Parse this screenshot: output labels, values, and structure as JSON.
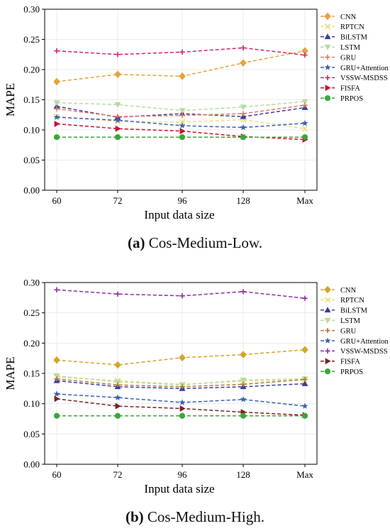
{
  "chart_data": [
    {
      "type": "line",
      "caption_letter": "(a)",
      "caption_text": " Cos-Medium-Low.",
      "xlabel": "Input data size",
      "ylabel": "MAPE",
      "categories": [
        "60",
        "72",
        "96",
        "128",
        "Max"
      ],
      "ylim": [
        0,
        0.3
      ],
      "yticks": [
        "0.00",
        "0.05",
        "0.10",
        "0.15",
        "0.20",
        "0.25",
        "0.30"
      ],
      "grid": true,
      "legend_position": "right",
      "series": [
        {
          "name": "CNN",
          "color": "#e8a23c",
          "marker": "diamond",
          "values": [
            0.18,
            0.192,
            0.189,
            0.211,
            0.231
          ]
        },
        {
          "name": "RPTCN",
          "color": "#eedd82",
          "marker": "x",
          "values": [
            0.122,
            0.114,
            0.113,
            0.117,
            0.102
          ]
        },
        {
          "name": "BiLSTM",
          "color": "#3c3c96",
          "marker": "triangle",
          "values": [
            0.139,
            0.121,
            0.127,
            0.122,
            0.137
          ]
        },
        {
          "name": "LSTM",
          "color": "#b6dca0",
          "marker": "triangle-down",
          "values": [
            0.145,
            0.142,
            0.132,
            0.138,
            0.147
          ]
        },
        {
          "name": "GRU",
          "color": "#e07a5f",
          "marker": "plus",
          "values": [
            0.135,
            0.122,
            0.124,
            0.127,
            0.141
          ]
        },
        {
          "name": "GRU+Attention",
          "color": "#3a5fb0",
          "marker": "star",
          "values": [
            0.121,
            0.116,
            0.107,
            0.104,
            0.111
          ]
        },
        {
          "name": "VSSW-MSDSS",
          "color": "#d0236e",
          "marker": "plus",
          "values": [
            0.231,
            0.225,
            0.229,
            0.236,
            0.224
          ]
        },
        {
          "name": "FISFA",
          "color": "#c8102e",
          "marker": "triangle-right",
          "values": [
            0.11,
            0.102,
            0.098,
            0.089,
            0.084
          ]
        },
        {
          "name": "PRPOS",
          "color": "#3aa63a",
          "marker": "circle",
          "values": [
            0.088,
            0.088,
            0.088,
            0.088,
            0.088
          ]
        }
      ]
    },
    {
      "type": "line",
      "caption_letter": "(b)",
      "caption_text": " Cos-Medium-High.",
      "xlabel": "Input data size",
      "ylabel": "MAPE",
      "categories": [
        "60",
        "72",
        "96",
        "128",
        "Max"
      ],
      "ylim": [
        0,
        0.3
      ],
      "yticks": [
        "0.00",
        "0.05",
        "0.10",
        "0.15",
        "0.20",
        "0.25",
        "0.30"
      ],
      "grid": true,
      "legend_position": "right",
      "series": [
        {
          "name": "CNN",
          "color": "#d4a52c",
          "marker": "diamond",
          "values": [
            0.172,
            0.164,
            0.176,
            0.181,
            0.189
          ]
        },
        {
          "name": "RPTCN",
          "color": "#eedd82",
          "marker": "x",
          "values": [
            0.144,
            0.138,
            0.132,
            0.137,
            0.139
          ]
        },
        {
          "name": "BiLSTM",
          "color": "#3c3c96",
          "marker": "triangle",
          "values": [
            0.138,
            0.128,
            0.125,
            0.128,
            0.133
          ]
        },
        {
          "name": "LSTM",
          "color": "#b6dca0",
          "marker": "triangle-down",
          "values": [
            0.146,
            0.136,
            0.131,
            0.139,
            0.141
          ]
        },
        {
          "name": "GRU",
          "color": "#b07a3a",
          "marker": "plus",
          "values": [
            0.141,
            0.131,
            0.128,
            0.132,
            0.14
          ]
        },
        {
          "name": "GRU+Attention",
          "color": "#3a5fb0",
          "marker": "star",
          "values": [
            0.116,
            0.11,
            0.102,
            0.107,
            0.096
          ]
        },
        {
          "name": "VSSW-MSDSS",
          "color": "#8a2c9e",
          "marker": "plus",
          "values": [
            0.288,
            0.281,
            0.278,
            0.285,
            0.274
          ]
        },
        {
          "name": "FISFA",
          "color": "#7a2020",
          "marker": "triangle-right",
          "values": [
            0.108,
            0.096,
            0.092,
            0.086,
            0.081
          ]
        },
        {
          "name": "PRPOS",
          "color": "#3aa63a",
          "marker": "circle",
          "values": [
            0.08,
            0.08,
            0.08,
            0.08,
            0.08
          ]
        }
      ]
    }
  ]
}
